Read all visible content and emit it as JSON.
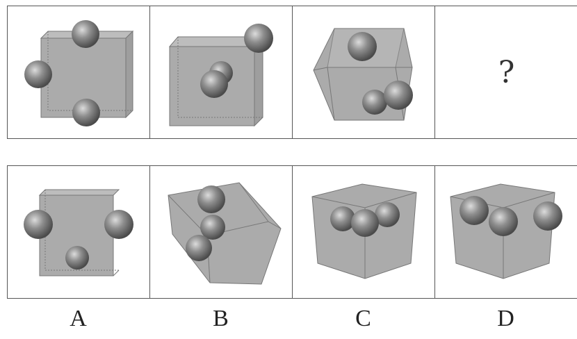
{
  "question_row": {
    "panels": [
      {
        "id": "q1"
      },
      {
        "id": "q2"
      },
      {
        "id": "q3"
      },
      {
        "id": "q4",
        "text": "?"
      }
    ]
  },
  "option_row": {
    "labels": [
      "A",
      "B",
      "C",
      "D"
    ]
  },
  "colors": {
    "cube_face": "#aaaaaa",
    "cube_edge": "#777777",
    "sphere": "#8a8a8a",
    "border": "#555555"
  }
}
